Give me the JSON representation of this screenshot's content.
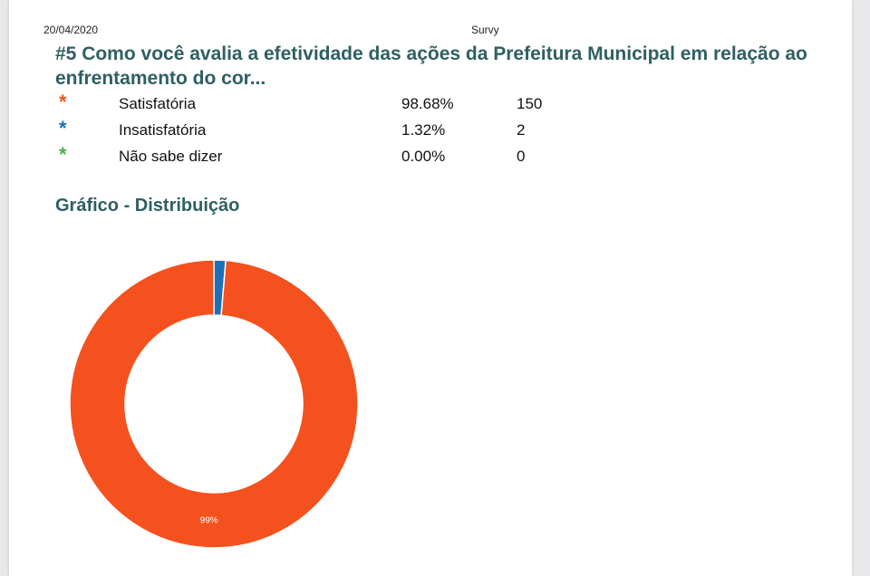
{
  "header": {
    "date": "20/04/2020",
    "app_name": "Survy"
  },
  "question": {
    "title": "#5 Como você avalia a efetividade das ações da Prefeitura Municipal em relação ao enfrentamento do cor..."
  },
  "answers": [
    {
      "label": "Satisfatória",
      "percent": "98.68%",
      "count": "150",
      "color": "#f4511e"
    },
    {
      "label": "Insatisfatória",
      "percent": "1.32%",
      "count": "2",
      "color": "#1e6fb8"
    },
    {
      "label": "Não sabe dizer",
      "percent": "0.00%",
      "count": "0",
      "color": "#4caf50"
    }
  ],
  "star_glyph": "*",
  "chart_heading": "Gráfico - Distribuição",
  "chart_data": {
    "type": "pie",
    "variant": "donut",
    "title": "Gráfico - Distribuição",
    "categories": [
      "Satisfatória",
      "Insatisfatória",
      "Não sabe dizer"
    ],
    "values": [
      150,
      2,
      0
    ],
    "colors": [
      "#f4511e",
      "#1e6fb8",
      "#4caf50"
    ],
    "data_labels": [
      "99%",
      "",
      ""
    ]
  }
}
